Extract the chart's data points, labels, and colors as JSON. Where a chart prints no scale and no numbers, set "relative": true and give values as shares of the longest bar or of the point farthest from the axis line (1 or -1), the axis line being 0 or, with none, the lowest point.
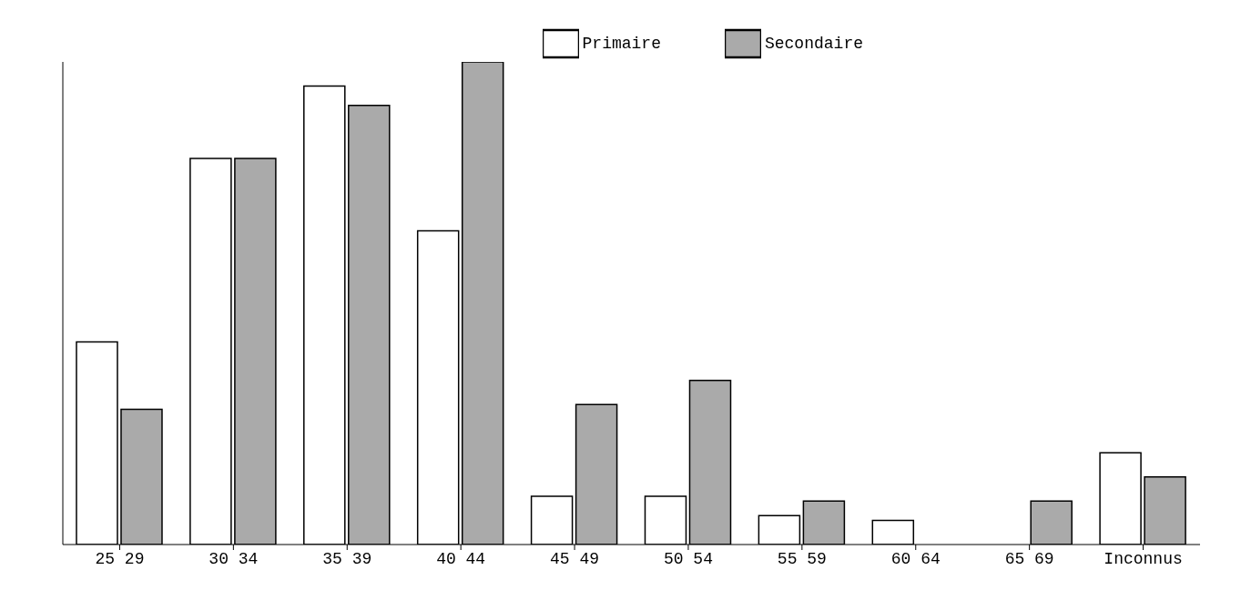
{
  "chart_data": {
    "type": "bar",
    "relative": true,
    "categories": [
      "25    29",
      "30  34",
      "35  39",
      "40  44",
      "45  49",
      "50    54",
      "55  59",
      "60  64",
      "65  69",
      "Inconnus"
    ],
    "series": [
      {
        "name": "Primaire",
        "color": "#ffffff",
        "values": [
          0.42,
          0.8,
          0.95,
          0.65,
          0.1,
          0.1,
          0.06,
          0.05,
          0,
          0.19
        ]
      },
      {
        "name": "Secondaire",
        "color": "#aaaaaa",
        "values": [
          0.28,
          0.8,
          0.91,
          1,
          0.29,
          0.34,
          0.09,
          0,
          0.09,
          0.14
        ]
      }
    ],
    "legend": "top right",
    "grid": false
  }
}
